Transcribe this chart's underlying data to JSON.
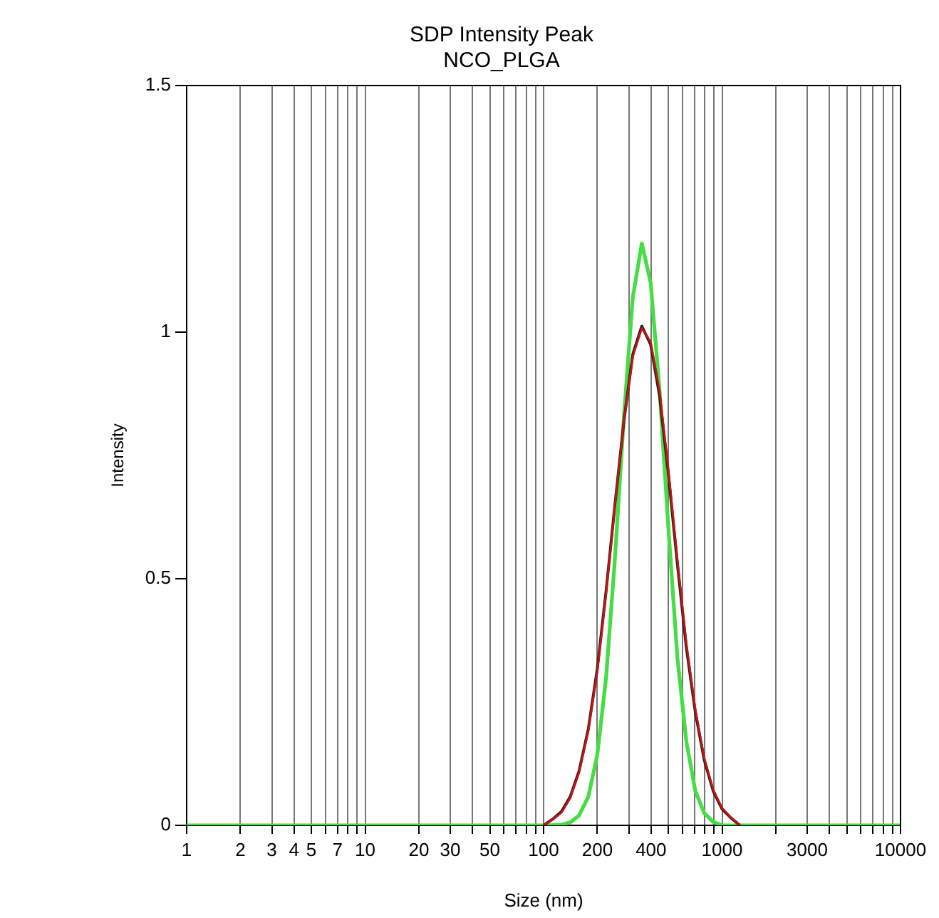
{
  "chart_data": {
    "type": "line",
    "title": "SDP Intensity Peak",
    "subtitle": "NCO_PLGA",
    "xlabel": "Size (nm)",
    "ylabel": "Intensity",
    "log": "x",
    "xlim": [
      1,
      10000
    ],
    "ylim": [
      0,
      1.5
    ],
    "yticks": [
      0,
      0.5,
      1,
      1.5
    ],
    "xticks": [
      1,
      2,
      3,
      4,
      5,
      {
        "value": 6,
        "label": null
      },
      7,
      {
        "value": 8,
        "label": null
      },
      {
        "value": 9,
        "label": null
      },
      10,
      20,
      30,
      {
        "value": 40,
        "label": null
      },
      50,
      {
        "value": 60,
        "label": null
      },
      {
        "value": 70,
        "label": null
      },
      {
        "value": 80,
        "label": null
      },
      {
        "value": 90,
        "label": null
      },
      100,
      200,
      {
        "value": 300,
        "label": null
      },
      400,
      {
        "value": 500,
        "label": null
      },
      {
        "value": 600,
        "label": null
      },
      {
        "value": 700,
        "label": null
      },
      {
        "value": 800,
        "label": null
      },
      {
        "value": 900,
        "label": null
      },
      1000,
      {
        "value": 2000,
        "label": null
      },
      3000,
      {
        "value": 4000,
        "label": null
      },
      {
        "value": 5000,
        "label": null
      },
      {
        "value": 6000,
        "label": null
      },
      {
        "value": 7000,
        "label": null
      },
      {
        "value": 8000,
        "label": null
      },
      {
        "value": 9000,
        "label": null
      },
      10000
    ],
    "grid": "x",
    "marker": "none",
    "line_style": "solid",
    "series": [
      {
        "color": "#cc1111",
        "x": [
          100,
          112,
          126,
          141,
          158,
          178,
          200,
          224,
          251,
          282,
          316,
          355,
          398,
          447,
          501,
          562,
          631,
          708,
          794,
          891,
          1000,
          1122,
          1259
        ],
        "values": [
          0,
          0.011,
          0.026,
          0.055,
          0.107,
          0.191,
          0.313,
          0.471,
          0.648,
          0.82,
          0.95,
          1.008,
          0.98,
          0.88,
          0.72,
          0.54,
          0.37,
          0.236,
          0.137,
          0.073,
          0.035,
          0.016,
          0
        ]
      },
      {
        "color": "#222222",
        "x": [
          100,
          112,
          126,
          141,
          158,
          178,
          200,
          224,
          251,
          282,
          316,
          355,
          398,
          447,
          501,
          562,
          631,
          708,
          794,
          891,
          1000,
          1122,
          1259
        ],
        "values": [
          0,
          0.012,
          0.028,
          0.058,
          0.11,
          0.195,
          0.318,
          0.475,
          0.65,
          0.82,
          0.955,
          1.012,
          0.975,
          0.87,
          0.71,
          0.53,
          0.36,
          0.23,
          0.133,
          0.07,
          0.033,
          0.015,
          0
        ]
      },
      {
        "color": "#44dd44",
        "x": [
          1,
          100,
          126,
          141,
          158,
          178,
          200,
          224,
          251,
          282,
          316,
          355,
          398,
          447,
          501,
          562,
          631,
          708,
          794,
          891,
          1000,
          10000
        ],
        "values": [
          0,
          0,
          0.001,
          0.006,
          0.02,
          0.058,
          0.143,
          0.3,
          0.54,
          0.83,
          1.07,
          1.18,
          1.1,
          0.88,
          0.6,
          0.34,
          0.17,
          0.07,
          0.025,
          0.007,
          0,
          0
        ]
      }
    ]
  }
}
